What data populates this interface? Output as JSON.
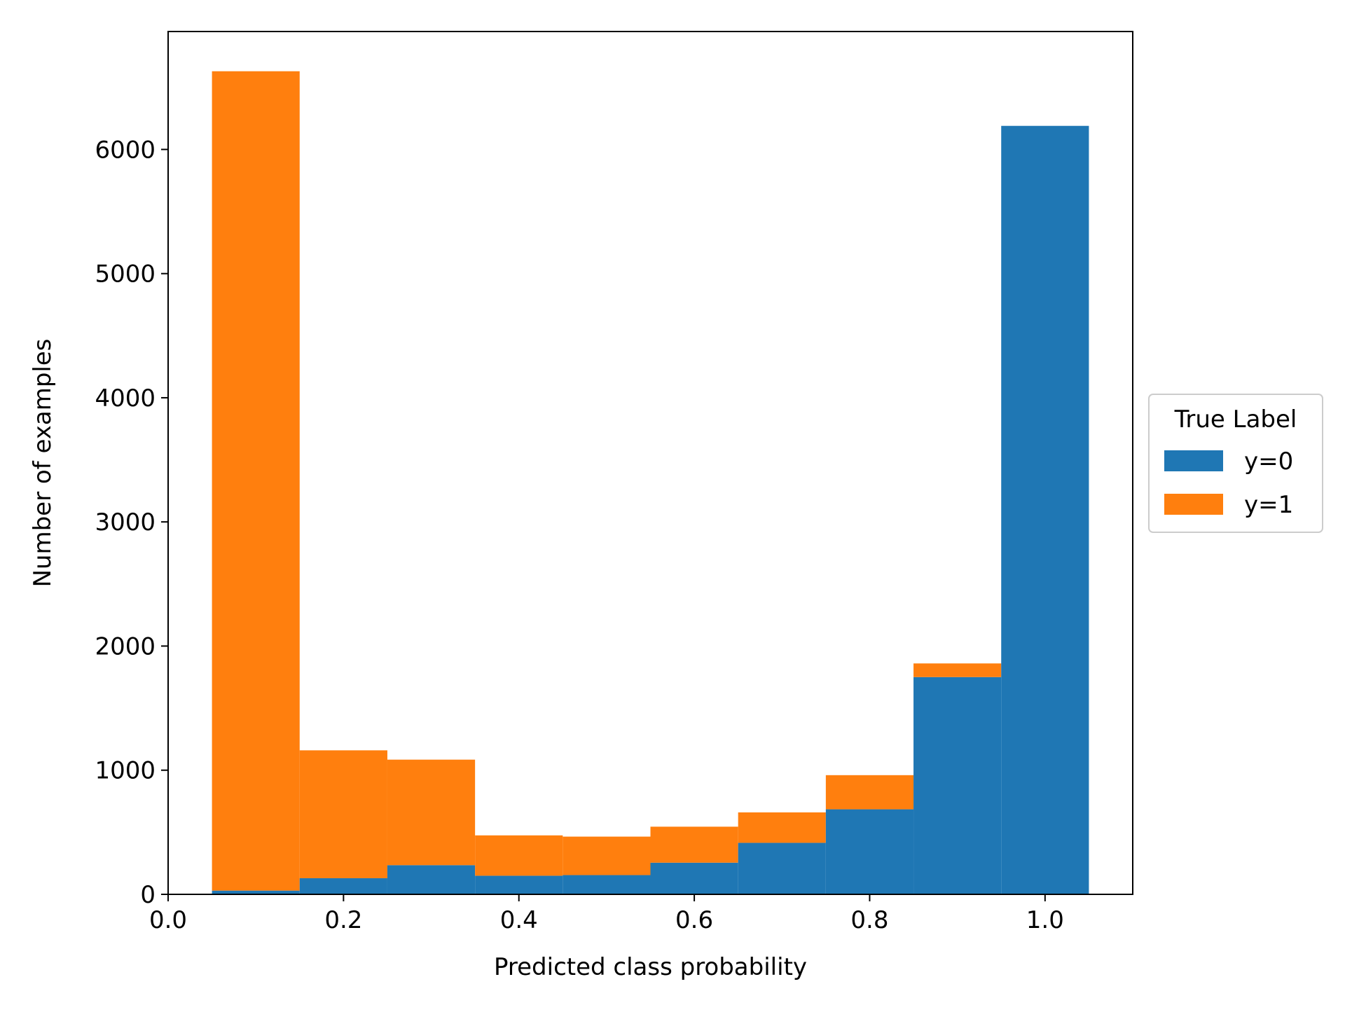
{
  "chart_data": {
    "type": "bar",
    "stacked": true,
    "bins": [
      [
        0.05,
        0.15
      ],
      [
        0.15,
        0.25
      ],
      [
        0.25,
        0.35
      ],
      [
        0.35,
        0.45
      ],
      [
        0.45,
        0.55
      ],
      [
        0.55,
        0.65
      ],
      [
        0.65,
        0.75
      ],
      [
        0.75,
        0.85
      ],
      [
        0.85,
        0.95
      ],
      [
        0.95,
        1.05
      ]
    ],
    "series": [
      {
        "name": "y=0",
        "color": "#1f77b4",
        "values": [
          30,
          130,
          235,
          150,
          155,
          255,
          415,
          685,
          1750,
          6190
        ]
      },
      {
        "name": "y=1",
        "color": "#ff7f0e",
        "values": [
          6600,
          1030,
          850,
          325,
          310,
          290,
          245,
          275,
          110,
          0
        ]
      }
    ],
    "xlabel": "Predicted class probability",
    "ylabel": "Number of examples",
    "xlim": [
      0.0,
      1.1
    ],
    "ylim": [
      0,
      6950
    ],
    "xticks": [
      "0.0",
      "0.2",
      "0.4",
      "0.6",
      "0.8",
      "1.0"
    ],
    "yticks": [
      "0",
      "1000",
      "2000",
      "3000",
      "4000",
      "5000",
      "6000"
    ],
    "grid": false,
    "legend": {
      "title": "True Label",
      "placement": "right"
    }
  }
}
